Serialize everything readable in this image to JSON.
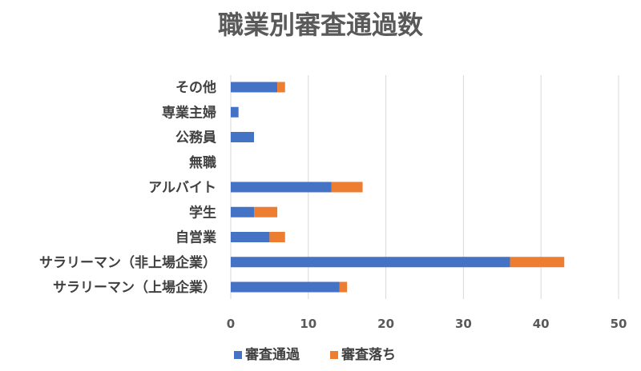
{
  "chart_data": {
    "type": "bar",
    "orientation": "horizontal",
    "stacked": true,
    "title": "職業別審査通過数",
    "categories": [
      "その他",
      "専業主婦",
      "公務員",
      "無職",
      "アルバイト",
      "学生",
      "自営業",
      "サラリーマン（非上場企業）",
      "サラリーマン（上場企業）"
    ],
    "series": [
      {
        "name": "審査通過",
        "color": "#4472c4",
        "values": [
          6,
          1,
          3,
          0,
          13,
          3,
          5,
          36,
          14
        ]
      },
      {
        "name": "審査落ち",
        "color": "#ed7d31",
        "values": [
          1,
          0,
          0,
          0,
          4,
          3,
          2,
          7,
          1
        ]
      }
    ],
    "xlim": [
      0,
      50
    ],
    "xticks": [
      "0",
      "10",
      "20",
      "30",
      "40",
      "50"
    ],
    "grid": true,
    "legend_position": "bottom"
  }
}
